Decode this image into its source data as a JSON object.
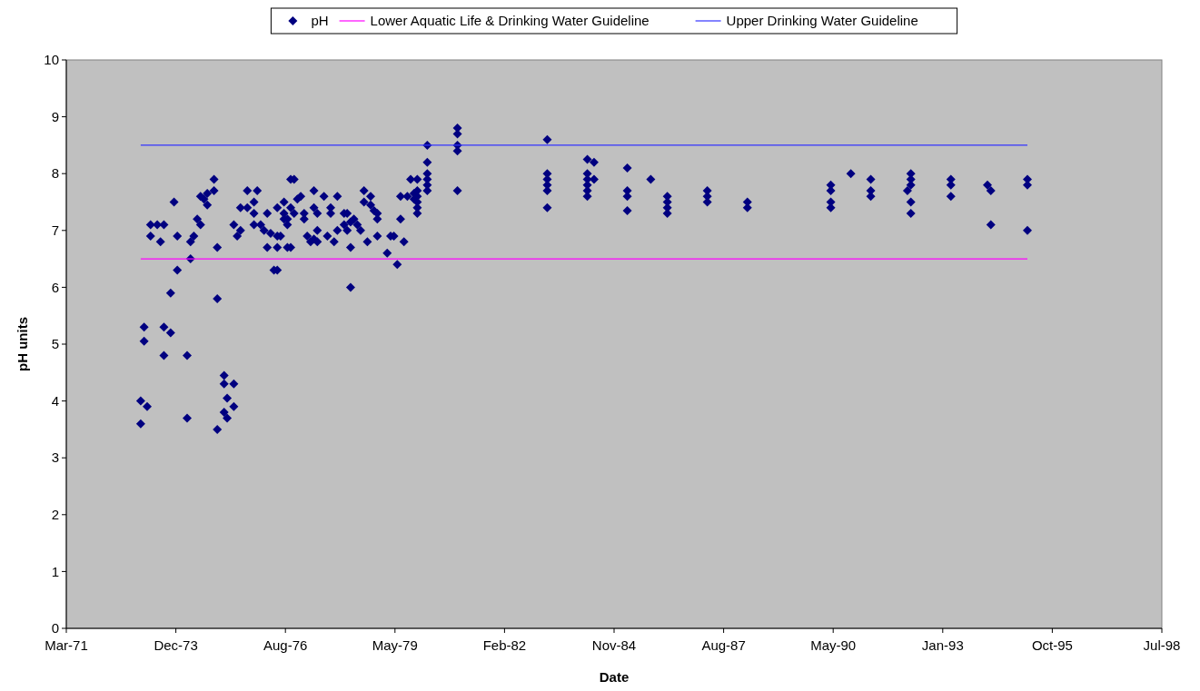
{
  "chart_data": {
    "type": "scatter",
    "xlabel": "Date",
    "ylabel": "pH units",
    "legend": "top",
    "grid": false,
    "xlim": [
      "1971-03-08",
      "1998-07-24"
    ],
    "xticks": [
      {
        "value": "1971-03-08",
        "label": "Mar-71"
      },
      {
        "value": "1973-12-02",
        "label": "Dec-73"
      },
      {
        "value": "1976-08-28",
        "label": "Aug-76"
      },
      {
        "value": "1979-05-25",
        "label": "May-79"
      },
      {
        "value": "1982-02-18",
        "label": "Feb-82"
      },
      {
        "value": "1984-11-14",
        "label": "Nov-84"
      },
      {
        "value": "1987-08-11",
        "label": "Aug-87"
      },
      {
        "value": "1990-05-07",
        "label": "May-90"
      },
      {
        "value": "1993-01-31",
        "label": "Jan-93"
      },
      {
        "value": "1995-10-28",
        "label": "Oct-95"
      },
      {
        "value": "1998-07-24",
        "label": "Jul-98"
      }
    ],
    "ylim": [
      0,
      10
    ],
    "yticks": [
      0,
      1,
      2,
      3,
      4,
      5,
      6,
      7,
      8,
      9,
      10
    ],
    "series": [
      {
        "name": "pH",
        "color": "#000080",
        "marker": "diamond",
        "x": [
          "1973-01",
          "1973-01",
          "1973-02",
          "1973-02",
          "1973-03",
          "1973-04",
          "1973-04",
          "1973-06",
          "1973-07",
          "1973-08",
          "1973-08",
          "1973-08",
          "1973-10",
          "1973-10",
          "1973-11",
          "1973-12",
          "1973-12",
          "1974-03",
          "1974-03",
          "1974-04",
          "1974-04",
          "1974-05",
          "1974-06",
          "1974-07",
          "1974-07",
          "1974-08",
          "1974-09",
          "1974-09",
          "1974-11",
          "1974-11",
          "1974-12",
          "1974-12",
          "1974-12",
          "1975-02",
          "1975-02",
          "1975-02",
          "1975-03",
          "1975-03",
          "1975-05",
          "1975-05",
          "1975-05",
          "1975-06",
          "1975-07",
          "1975-07",
          "1975-09",
          "1975-09",
          "1975-11",
          "1975-11",
          "1975-11",
          "1975-12",
          "1976-01",
          "1976-02",
          "1976-03",
          "1976-03",
          "1976-04",
          "1976-05",
          "1976-06",
          "1976-06",
          "1976-06",
          "1976-06",
          "1976-07",
          "1976-08",
          "1976-08",
          "1976-08",
          "1976-09",
          "1976-09",
          "1976-09",
          "1976-10",
          "1976-10",
          "1976-10",
          "1976-11",
          "1976-11",
          "1976-12",
          "1977-01",
          "1977-02",
          "1977-02",
          "1977-03",
          "1977-04",
          "1977-05",
          "1977-05",
          "1977-05",
          "1977-06",
          "1977-06",
          "1977-06",
          "1977-08",
          "1977-09",
          "1977-10",
          "1977-10",
          "1977-11",
          "1977-12",
          "1977-12",
          "1978-02",
          "1978-02",
          "1978-03",
          "1978-03",
          "1978-04",
          "1978-04",
          "1978-04",
          "1978-05",
          "1978-06",
          "1978-07",
          "1978-08",
          "1978-08",
          "1978-09",
          "1978-10",
          "1978-10",
          "1978-11",
          "1978-12",
          "1978-12",
          "1978-12",
          "1979-03",
          "1979-04",
          "1979-05",
          "1979-06",
          "1979-07",
          "1979-07",
          "1979-08",
          "1979-09",
          "1979-10",
          "1979-11",
          "1979-11",
          "1979-12",
          "1979-12",
          "1979-12",
          "1979-12",
          "1979-12",
          "1979-12",
          "1980-03",
          "1980-03",
          "1980-03",
          "1980-03",
          "1980-03",
          "1980-03",
          "1980-12",
          "1980-12",
          "1980-12",
          "1980-12",
          "1980-12",
          "1983-03",
          "1983-03",
          "1983-03",
          "1983-03",
          "1983-03",
          "1983-03",
          "1984-03",
          "1984-03",
          "1984-03",
          "1984-03",
          "1984-03",
          "1984-03",
          "1984-05",
          "1984-05",
          "1985-03",
          "1985-03",
          "1985-03",
          "1985-03",
          "1985-10",
          "1986-03",
          "1986-03",
          "1986-03",
          "1986-03",
          "1987-03",
          "1987-03",
          "1987-03",
          "1988-03",
          "1988-03",
          "1990-04",
          "1990-04",
          "1990-04",
          "1990-04",
          "1990-10",
          "1991-04",
          "1991-04",
          "1991-04",
          "1992-03",
          "1992-04",
          "1992-04",
          "1992-04",
          "1992-04",
          "1992-04",
          "1993-04",
          "1993-04",
          "1993-04",
          "1994-03",
          "1994-04",
          "1994-04",
          "1995-03",
          "1995-03",
          "1995-03"
        ],
        "values": [
          3.6,
          4.0,
          5.3,
          5.05,
          3.9,
          7.1,
          6.9,
          7.1,
          6.8,
          7.1,
          5.3,
          4.8,
          5.2,
          5.9,
          7.5,
          6.9,
          6.3,
          3.7,
          4.8,
          6.8,
          6.5,
          6.9,
          7.2,
          7.1,
          7.6,
          7.55,
          7.65,
          7.45,
          7.7,
          7.9,
          3.5,
          5.8,
          6.7,
          4.45,
          4.3,
          3.8,
          3.7,
          4.05,
          4.3,
          3.9,
          7.1,
          6.9,
          7.0,
          7.4,
          7.7,
          7.4,
          7.5,
          7.3,
          7.1,
          7.7,
          7.1,
          7.0,
          6.7,
          7.3,
          6.95,
          6.3,
          6.3,
          6.9,
          6.7,
          7.4,
          6.9,
          7.2,
          7.5,
          7.3,
          7.1,
          7.2,
          6.7,
          7.9,
          7.4,
          6.7,
          7.9,
          7.3,
          7.55,
          7.6,
          7.3,
          7.2,
          6.9,
          6.8,
          7.7,
          7.4,
          6.85,
          7.3,
          6.8,
          7.0,
          7.6,
          6.9,
          7.3,
          7.4,
          6.8,
          7.6,
          7.0,
          7.3,
          7.1,
          7.0,
          7.3,
          6.7,
          6.0,
          7.15,
          7.2,
          7.1,
          7.0,
          7.5,
          7.7,
          6.8,
          7.6,
          7.45,
          7.35,
          7.3,
          7.2,
          6.9,
          6.6,
          6.9,
          6.9,
          6.4,
          7.2,
          7.6,
          6.8,
          7.6,
          7.9,
          7.65,
          7.55,
          7.5,
          7.4,
          7.3,
          7.9,
          7.7,
          7.6,
          8.5,
          8.2,
          8.0,
          7.9,
          7.8,
          7.7,
          8.8,
          8.7,
          8.5,
          8.4,
          7.7,
          8.6,
          8.0,
          7.9,
          7.8,
          7.7,
          7.4,
          8.25,
          8.0,
          7.9,
          7.8,
          7.7,
          7.6,
          8.2,
          7.9,
          8.1,
          7.7,
          7.6,
          7.35,
          7.9,
          7.6,
          7.5,
          7.4,
          7.3,
          7.7,
          7.6,
          7.5,
          7.5,
          7.4,
          7.8,
          7.7,
          7.5,
          7.4,
          8.0,
          7.9,
          7.7,
          7.6,
          7.7,
          8.0,
          7.9,
          7.8,
          7.5,
          7.3,
          7.9,
          7.8,
          7.6,
          7.8,
          7.7,
          7.1,
          7.9,
          7.8,
          7.0
        ]
      },
      {
        "name": "Lower Aquatic Life & Drinking Water Guideline",
        "type": "line",
        "marker": "none",
        "color": "#ff00ff",
        "x": [
          "1973-01",
          "1995-03"
        ],
        "values": [
          6.5,
          6.5
        ]
      },
      {
        "name": "Upper Drinking Water Guideline",
        "type": "line",
        "marker": "none",
        "color": "#3333ff",
        "x": [
          "1973-01",
          "1995-03"
        ],
        "values": [
          8.5,
          8.5
        ]
      }
    ]
  }
}
